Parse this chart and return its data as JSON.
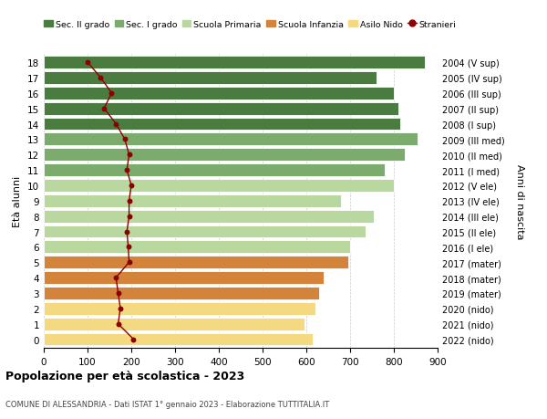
{
  "ages": [
    18,
    17,
    16,
    15,
    14,
    13,
    12,
    11,
    10,
    9,
    8,
    7,
    6,
    5,
    4,
    3,
    2,
    1,
    0
  ],
  "right_labels": [
    "2004 (V sup)",
    "2005 (IV sup)",
    "2006 (III sup)",
    "2007 (II sup)",
    "2008 (I sup)",
    "2009 (III med)",
    "2010 (II med)",
    "2011 (I med)",
    "2012 (V ele)",
    "2013 (IV ele)",
    "2014 (III ele)",
    "2015 (II ele)",
    "2016 (I ele)",
    "2017 (mater)",
    "2018 (mater)",
    "2019 (mater)",
    "2020 (nido)",
    "2021 (nido)",
    "2022 (nido)"
  ],
  "bar_values": [
    870,
    760,
    800,
    810,
    815,
    855,
    825,
    780,
    800,
    680,
    755,
    735,
    700,
    695,
    640,
    630,
    620,
    595,
    615
  ],
  "bar_colors": [
    "#4a7c3f",
    "#4a7c3f",
    "#4a7c3f",
    "#4a7c3f",
    "#4a7c3f",
    "#7bac6e",
    "#7bac6e",
    "#7bac6e",
    "#b8d8a0",
    "#b8d8a0",
    "#b8d8a0",
    "#b8d8a0",
    "#b8d8a0",
    "#d4833a",
    "#d4833a",
    "#d4833a",
    "#f5d980",
    "#f5d980",
    "#f5d980"
  ],
  "stranieri_values": [
    100,
    130,
    155,
    138,
    165,
    185,
    195,
    190,
    200,
    195,
    195,
    190,
    193,
    195,
    165,
    170,
    175,
    170,
    205
  ],
  "legend_labels": [
    "Sec. II grado",
    "Sec. I grado",
    "Scuola Primaria",
    "Scuola Infanzia",
    "Asilo Nido",
    "Stranieri"
  ],
  "legend_colors": [
    "#4a7c3f",
    "#7bac6e",
    "#b8d8a0",
    "#d4833a",
    "#f5d980",
    "#9b1c1c"
  ],
  "right_axis_label": "Anni di nascita",
  "ylabel_left": "Età alunni",
  "title": "Popolazione per età scolastica - 2023",
  "subtitle": "COMUNE DI ALESSANDRIA - Dati ISTAT 1° gennaio 2023 - Elaborazione TUTTITALIA.IT",
  "xlim": [
    0,
    900
  ],
  "xticks": [
    0,
    100,
    200,
    300,
    400,
    500,
    600,
    700,
    800,
    900
  ],
  "bar_height": 0.82
}
